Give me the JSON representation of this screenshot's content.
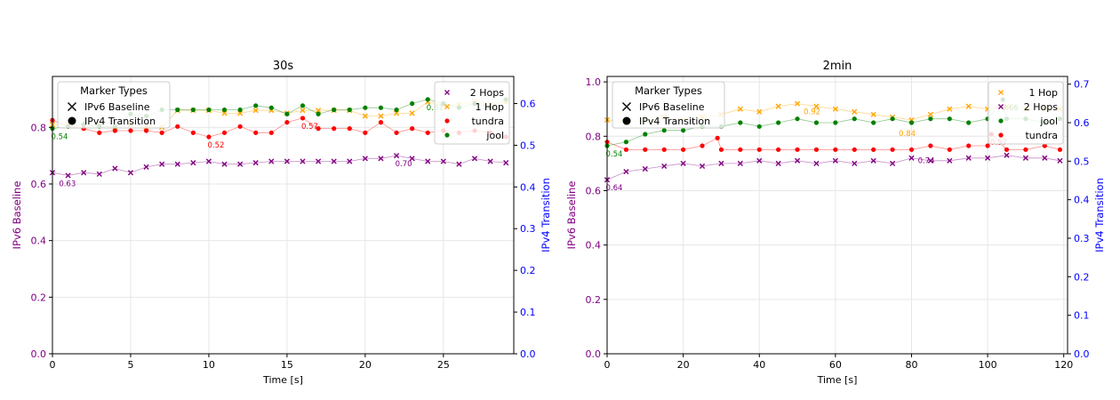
{
  "colors": {
    "hop1": "#ffa500",
    "hop2": "#800080",
    "tundra": "#ff0000",
    "jool": "#008000",
    "left_axis": "#800080",
    "right_axis": "#0000ff",
    "grid": "#e6e6e6"
  },
  "chart_data": [
    {
      "type": "line",
      "title": "30s",
      "xlabel": "Time [s]",
      "ylabel_left": "IPv6 Baseline",
      "ylabel_right": "IPv4 Transition",
      "xlim": [
        0,
        29.5
      ],
      "ylim_left": [
        0,
        0.98
      ],
      "ylim_right": [
        0,
        0.665
      ],
      "xticks": [
        0,
        5,
        10,
        15,
        20,
        25
      ],
      "yticks_left": [
        0.0,
        0.2,
        0.4,
        0.6,
        0.8
      ],
      "yticks_right": [
        0.0,
        0.1,
        0.2,
        0.3,
        0.4,
        0.5,
        0.6
      ],
      "grid": true,
      "marker_legend": {
        "title": "Marker Types",
        "position": "top-left",
        "items": [
          {
            "label": "IPv6 Baseline",
            "marker": "x"
          },
          {
            "label": "IPv4 Transition",
            "marker": "o"
          }
        ]
      },
      "series_legend": {
        "position": "top-right",
        "items": [
          {
            "label": "2 Hops",
            "color_key": "hop2",
            "marker": "x"
          },
          {
            "label": "1 Hop",
            "color_key": "hop1",
            "marker": "x"
          },
          {
            "label": "tundra",
            "color_key": "tundra",
            "marker": "o"
          },
          {
            "label": "jool",
            "color_key": "jool",
            "marker": "o"
          }
        ]
      },
      "series": [
        {
          "name": "1 Hop",
          "axis": "left",
          "marker": "x",
          "color_key": "hop1",
          "x": [
            0,
            1,
            2,
            3,
            4,
            5,
            6,
            7,
            8,
            9,
            10,
            11,
            12,
            13,
            14,
            15,
            16,
            17,
            18,
            19,
            20,
            21,
            22,
            23,
            24,
            25,
            26,
            27,
            28,
            29
          ],
          "y": [
            0.81,
            0.81,
            0.8,
            0.81,
            0.8,
            0.81,
            0.8,
            0.8,
            0.86,
            0.86,
            0.86,
            0.85,
            0.85,
            0.86,
            0.86,
            0.85,
            0.86,
            0.86,
            0.86,
            0.86,
            0.84,
            0.84,
            0.85,
            0.85,
            0.89,
            0.88,
            0.88,
            0.89,
            0.88,
            0.89
          ]
        },
        {
          "name": "2 Hops",
          "axis": "left",
          "marker": "x",
          "color_key": "hop2",
          "x": [
            0,
            1,
            2,
            3,
            4,
            5,
            6,
            7,
            8,
            9,
            10,
            11,
            12,
            13,
            14,
            15,
            16,
            17,
            18,
            19,
            20,
            21,
            22,
            23,
            24,
            25,
            26,
            27,
            28,
            29
          ],
          "y": [
            0.64,
            0.63,
            0.64,
            0.635,
            0.655,
            0.64,
            0.66,
            0.67,
            0.67,
            0.675,
            0.68,
            0.67,
            0.67,
            0.675,
            0.68,
            0.68,
            0.68,
            0.68,
            0.68,
            0.68,
            0.69,
            0.69,
            0.7,
            0.69,
            0.68,
            0.68,
            0.67,
            0.69,
            0.68,
            0.675
          ]
        },
        {
          "name": "tundra",
          "axis": "right",
          "marker": "o",
          "color_key": "tundra",
          "x": [
            0,
            1,
            2,
            3,
            4,
            5,
            6,
            7,
            8,
            9,
            10,
            11,
            12,
            13,
            14,
            15,
            16,
            17,
            18,
            19,
            20,
            21,
            22,
            23,
            24,
            25,
            26,
            27,
            28,
            29
          ],
          "y": [
            0.56,
            0.545,
            0.54,
            0.53,
            0.535,
            0.535,
            0.535,
            0.53,
            0.545,
            0.53,
            0.52,
            0.53,
            0.545,
            0.53,
            0.53,
            0.555,
            0.565,
            0.54,
            0.54,
            0.54,
            0.53,
            0.555,
            0.53,
            0.54,
            0.53,
            0.535,
            0.53,
            0.535,
            0.53,
            0.52
          ]
        },
        {
          "name": "jool",
          "axis": "right",
          "marker": "o",
          "color_key": "jool",
          "x": [
            0,
            1,
            2,
            3,
            4,
            5,
            6,
            7,
            8,
            9,
            10,
            11,
            12,
            13,
            14,
            15,
            16,
            17,
            18,
            19,
            20,
            21,
            22,
            23,
            24,
            25,
            26,
            27,
            28,
            29
          ],
          "y": [
            0.54,
            0.545,
            0.55,
            0.545,
            0.545,
            0.575,
            0.57,
            0.585,
            0.585,
            0.585,
            0.585,
            0.585,
            0.585,
            0.595,
            0.59,
            0.575,
            0.595,
            0.575,
            0.585,
            0.585,
            0.59,
            0.59,
            0.585,
            0.6,
            0.61,
            0.6,
            0.59,
            0.6,
            0.59,
            0.61
          ]
        }
      ],
      "annotations": [
        {
          "text": "0.63",
          "x": 0.5,
          "y": 0.63,
          "axis": "left",
          "color_key": "hop2"
        },
        {
          "text": "0.54",
          "x": 0,
          "y": 0.54,
          "axis": "right",
          "color_key": "jool"
        },
        {
          "text": "0.52",
          "x": 10,
          "y": 0.52,
          "axis": "right",
          "color_key": "tundra"
        },
        {
          "text": "0.57",
          "x": 16,
          "y": 0.565,
          "axis": "right",
          "color_key": "tundra"
        },
        {
          "text": "0.70",
          "x": 22,
          "y": 0.7,
          "axis": "left",
          "color_key": "hop2"
        },
        {
          "text": "0.61",
          "x": 24,
          "y": 0.61,
          "axis": "right",
          "color_key": "jool"
        }
      ]
    },
    {
      "type": "line",
      "title": "2min",
      "xlabel": "Time [s]",
      "ylabel_left": "IPv6 Baseline",
      "ylabel_right": "IPv4 Transition",
      "xlim": [
        0,
        121
      ],
      "ylim_left": [
        0,
        1.02
      ],
      "ylim_right": [
        0,
        0.72
      ],
      "xticks": [
        0,
        20,
        40,
        60,
        80,
        100,
        120
      ],
      "yticks_left": [
        0.0,
        0.2,
        0.4,
        0.6,
        0.8,
        1.0
      ],
      "yticks_right": [
        0.0,
        0.1,
        0.2,
        0.3,
        0.4,
        0.5,
        0.6,
        0.7
      ],
      "grid": true,
      "marker_legend": {
        "title": "Marker Types",
        "position": "top-left",
        "items": [
          {
            "label": "IPv6 Baseline",
            "marker": "x"
          },
          {
            "label": "IPv4 Transition",
            "marker": "o"
          }
        ]
      },
      "series_legend": {
        "position": "top-right",
        "items": [
          {
            "label": "1 Hop",
            "color_key": "hop1",
            "marker": "x"
          },
          {
            "label": "2 Hops",
            "color_key": "hop2",
            "marker": "x"
          },
          {
            "label": "jool",
            "color_key": "jool",
            "marker": "o"
          },
          {
            "label": "tundra",
            "color_key": "tundra",
            "marker": "o"
          }
        ]
      },
      "series": [
        {
          "name": "1 Hop",
          "axis": "left",
          "marker": "x",
          "color_key": "hop1",
          "x": [
            0,
            5,
            10,
            15,
            20,
            25,
            30,
            35,
            40,
            45,
            50,
            55,
            60,
            65,
            70,
            75,
            80,
            85,
            90,
            95,
            100,
            105,
            110,
            115,
            119
          ],
          "y": [
            0.86,
            0.85,
            0.86,
            0.87,
            0.86,
            0.87,
            0.88,
            0.9,
            0.89,
            0.91,
            0.92,
            0.91,
            0.9,
            0.89,
            0.88,
            0.87,
            0.86,
            0.88,
            0.9,
            0.91,
            0.9,
            0.91,
            0.9,
            0.9,
            0.9
          ]
        },
        {
          "name": "2 Hops",
          "axis": "left",
          "marker": "x",
          "color_key": "hop2",
          "x": [
            0,
            5,
            10,
            15,
            20,
            25,
            30,
            35,
            40,
            45,
            50,
            55,
            60,
            65,
            70,
            75,
            80,
            85,
            90,
            95,
            100,
            105,
            110,
            115,
            119
          ],
          "y": [
            0.64,
            0.67,
            0.68,
            0.69,
            0.7,
            0.69,
            0.7,
            0.7,
            0.71,
            0.7,
            0.71,
            0.7,
            0.71,
            0.7,
            0.71,
            0.7,
            0.72,
            0.71,
            0.71,
            0.72,
            0.72,
            0.73,
            0.72,
            0.72,
            0.71
          ]
        },
        {
          "name": "tundra",
          "axis": "right",
          "marker": "o",
          "color_key": "tundra",
          "x": [
            0,
            5,
            10,
            15,
            20,
            25,
            29,
            30,
            35,
            40,
            45,
            50,
            55,
            60,
            65,
            70,
            75,
            80,
            85,
            90,
            95,
            100,
            101,
            105,
            110,
            115,
            119
          ],
          "y": [
            0.55,
            0.53,
            0.53,
            0.53,
            0.53,
            0.54,
            0.56,
            0.53,
            0.53,
            0.53,
            0.53,
            0.53,
            0.53,
            0.53,
            0.53,
            0.53,
            0.53,
            0.53,
            0.54,
            0.53,
            0.54,
            0.54,
            0.57,
            0.53,
            0.53,
            0.54,
            0.53
          ]
        },
        {
          "name": "jool",
          "axis": "right",
          "marker": "o",
          "color_key": "jool",
          "x": [
            0,
            5,
            10,
            15,
            20,
            25,
            30,
            35,
            40,
            45,
            50,
            55,
            60,
            65,
            70,
            75,
            80,
            85,
            90,
            95,
            100,
            104,
            105,
            110,
            115,
            119
          ],
          "y": [
            0.54,
            0.55,
            0.57,
            0.58,
            0.58,
            0.59,
            0.59,
            0.6,
            0.59,
            0.6,
            0.61,
            0.6,
            0.6,
            0.61,
            0.6,
            0.61,
            0.6,
            0.61,
            0.61,
            0.6,
            0.61,
            0.66,
            0.61,
            0.61,
            0.6,
            0.61
          ]
        }
      ],
      "annotations": [
        {
          "text": "0.54",
          "x": 0,
          "y": 0.54,
          "axis": "right",
          "color_key": "jool"
        },
        {
          "text": "0.64",
          "x": 0,
          "y": 0.64,
          "axis": "left",
          "color_key": "hop2"
        },
        {
          "text": "0.92",
          "x": 52,
          "y": 0.92,
          "axis": "left",
          "color_key": "hop1"
        },
        {
          "text": "0.84",
          "x": 77,
          "y": 0.84,
          "axis": "left",
          "color_key": "hop1"
        },
        {
          "text": "0.74",
          "x": 82,
          "y": 0.74,
          "axis": "left",
          "color_key": "hop2"
        },
        {
          "text": "0.57",
          "x": 101,
          "y": 0.57,
          "axis": "right",
          "color_key": "tundra"
        },
        {
          "text": "0.66",
          "x": 104,
          "y": 0.66,
          "axis": "right",
          "color_key": "jool"
        }
      ]
    }
  ]
}
